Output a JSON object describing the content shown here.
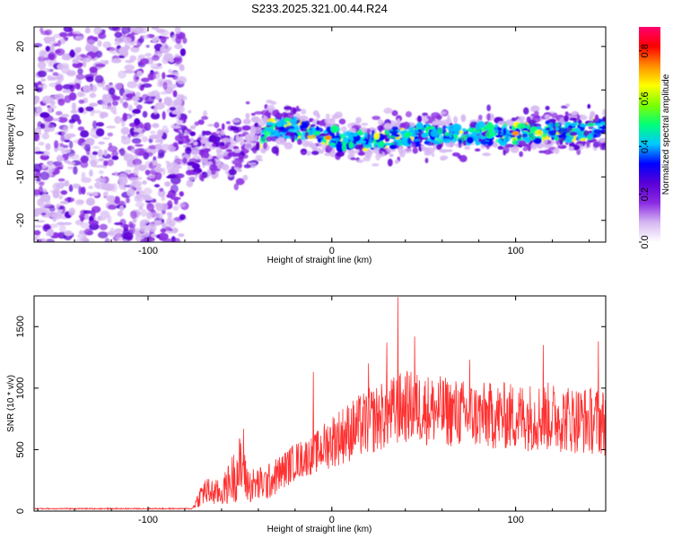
{
  "title": "S233.2025.321.00.44.R24",
  "chart_data": [
    {
      "type": "heatmap",
      "xlabel": "Height of straight line (km)",
      "ylabel": "Frequency (Hz)",
      "xlim": [
        -162,
        149
      ],
      "ylim": [
        -25,
        24.5
      ],
      "xticks": [
        -100,
        0,
        100
      ],
      "yticks": [
        -20,
        -10,
        0,
        10,
        20
      ],
      "colorbar": {
        "label": "Normalized spectral amplitude",
        "range": [
          0,
          0.9
        ],
        "ticks": [
          "0.0",
          "0.2",
          "0.4",
          "0.6",
          "0.8"
        ],
        "colors": [
          "#ffffff",
          "#d6b8f2",
          "#8a2be2",
          "#5a00d6",
          "#0000ff",
          "#00c8ff",
          "#00ff7a",
          "#7cff00",
          "#ffff00",
          "#ff9000",
          "#ff0000",
          "#ff0070"
        ]
      },
      "noise_region_km": [
        -162,
        -80
      ],
      "signal_band": [
        {
          "x": -80,
          "f": -4
        },
        {
          "x": -60,
          "f": -5
        },
        {
          "x": -45,
          "f": -3
        },
        {
          "x": -35,
          "f": 1
        },
        {
          "x": -20,
          "f": 1
        },
        {
          "x": 0,
          "f": -1
        },
        {
          "x": 20,
          "f": -2
        },
        {
          "x": 50,
          "f": 0
        },
        {
          "x": 100,
          "f": 0
        },
        {
          "x": 149,
          "f": 1
        }
      ]
    },
    {
      "type": "line",
      "xlabel": "Height of straight line (km)",
      "ylabel": "SNR (10 * v/v)",
      "xlim": [
        -162,
        149
      ],
      "ylim": [
        0,
        1750
      ],
      "xticks": [
        -100,
        0,
        100
      ],
      "yticks": [
        0,
        500,
        1000,
        1500
      ],
      "color": "#ff3030",
      "envelope": [
        {
          "x": -162,
          "lo": 15,
          "hi": 25
        },
        {
          "x": -76,
          "lo": 15,
          "hi": 25
        },
        {
          "x": -70,
          "lo": 40,
          "hi": 280
        },
        {
          "x": -60,
          "lo": 40,
          "hi": 250
        },
        {
          "x": -50,
          "lo": 80,
          "hi": 620
        },
        {
          "x": -45,
          "lo": 60,
          "hi": 350
        },
        {
          "x": -35,
          "lo": 80,
          "hi": 380
        },
        {
          "x": -20,
          "lo": 250,
          "hi": 560
        },
        {
          "x": -10,
          "lo": 300,
          "hi": 620
        },
        {
          "x": 0,
          "lo": 350,
          "hi": 800
        },
        {
          "x": 20,
          "lo": 450,
          "hi": 1000
        },
        {
          "x": 40,
          "lo": 550,
          "hi": 1150
        },
        {
          "x": 80,
          "lo": 500,
          "hi": 1050
        },
        {
          "x": 120,
          "lo": 480,
          "hi": 1050
        },
        {
          "x": 149,
          "lo": 450,
          "hi": 1000
        }
      ],
      "spikes": [
        {
          "x": -48,
          "y": 670
        },
        {
          "x": -10,
          "y": 1130
        },
        {
          "x": 20,
          "y": 1200
        },
        {
          "x": 30,
          "y": 1370
        },
        {
          "x": 36,
          "y": 1740
        },
        {
          "x": 45,
          "y": 1420
        },
        {
          "x": 75,
          "y": 1230
        },
        {
          "x": 115,
          "y": 1350
        },
        {
          "x": 145,
          "y": 1380
        }
      ]
    }
  ]
}
